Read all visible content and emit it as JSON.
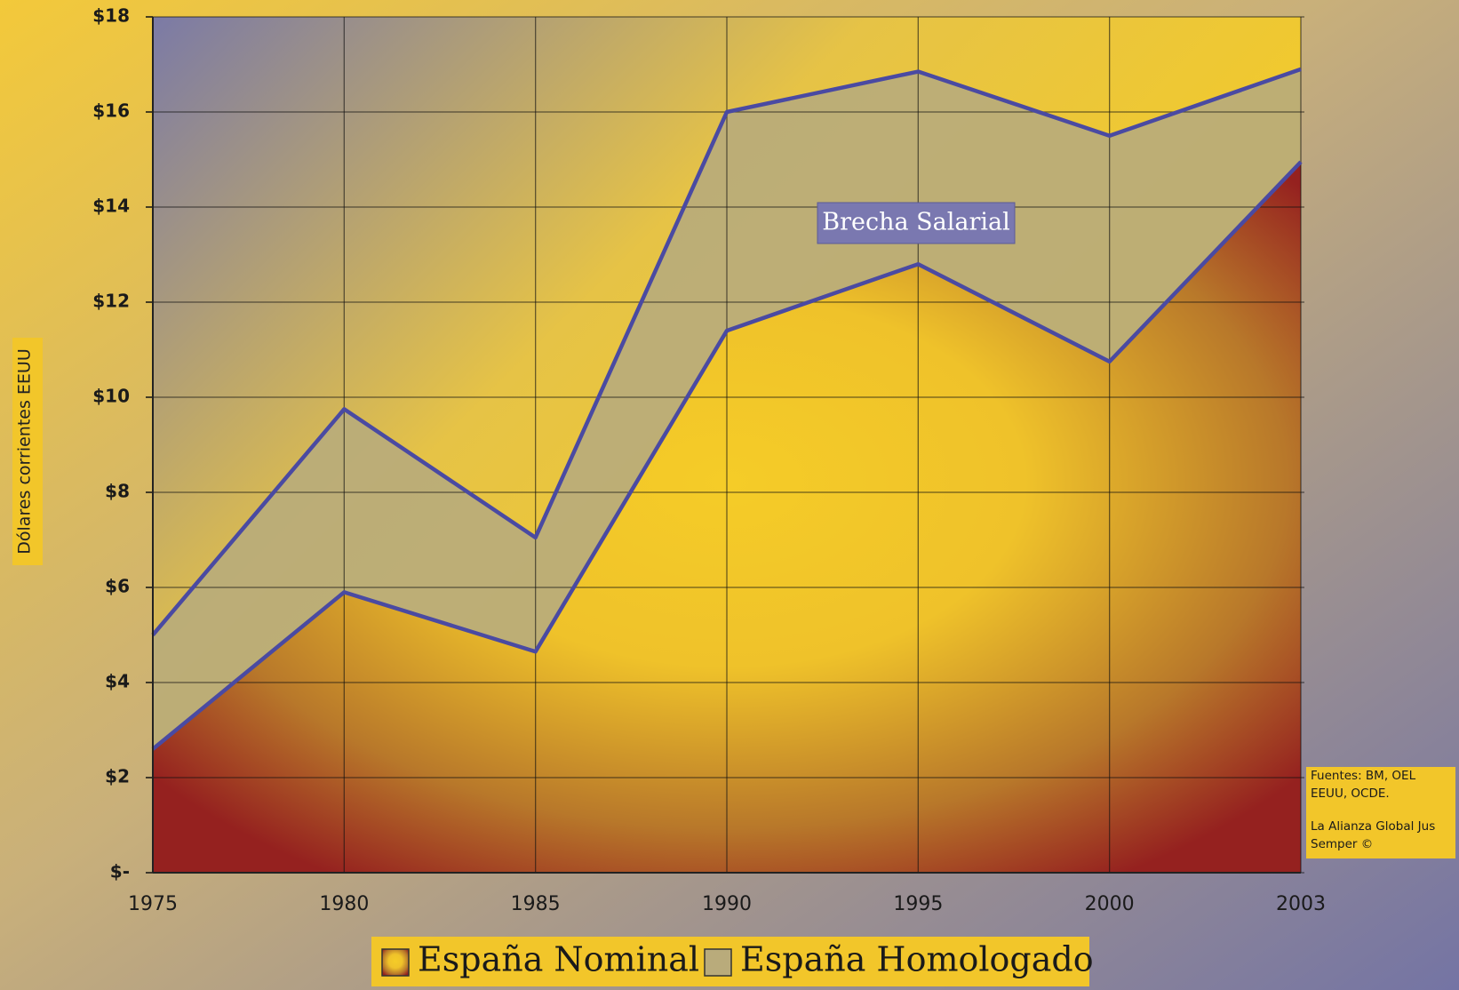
{
  "chart_data": {
    "type": "area",
    "y_label": "Dólares corrientes EEUU",
    "annotation": "Brecha Salarial",
    "source": [
      "Fuentes: BM, OEL",
      "EEUU, OCDE.",
      "La Alianza Global Jus",
      "Semper ©"
    ],
    "categories": [
      "1975",
      "1980",
      "1985",
      "1990",
      "1995",
      "2000",
      "2003"
    ],
    "series": [
      {
        "name": "España Nominal",
        "color": "#f2c62a",
        "values": [
          2.6,
          5.9,
          4.65,
          11.4,
          12.8,
          10.75,
          14.95
        ]
      },
      {
        "name": "España Homologado",
        "color": "#b9ab7b",
        "values": [
          5.0,
          9.75,
          7.05,
          16.0,
          16.85,
          15.5,
          16.9
        ]
      }
    ],
    "ylim": [
      0,
      18
    ],
    "yticks": [
      {
        "value": 0,
        "label": "$-"
      },
      {
        "value": 2,
        "label": "$2"
      },
      {
        "value": 4,
        "label": "$4"
      },
      {
        "value": 6,
        "label": "$6"
      },
      {
        "value": 8,
        "label": "$8"
      },
      {
        "value": 10,
        "label": "$10"
      },
      {
        "value": 12,
        "label": "$12"
      },
      {
        "value": 14,
        "label": "$14"
      },
      {
        "value": 16,
        "label": "$16"
      },
      {
        "value": 18,
        "label": "$18"
      }
    ],
    "grid": true
  }
}
